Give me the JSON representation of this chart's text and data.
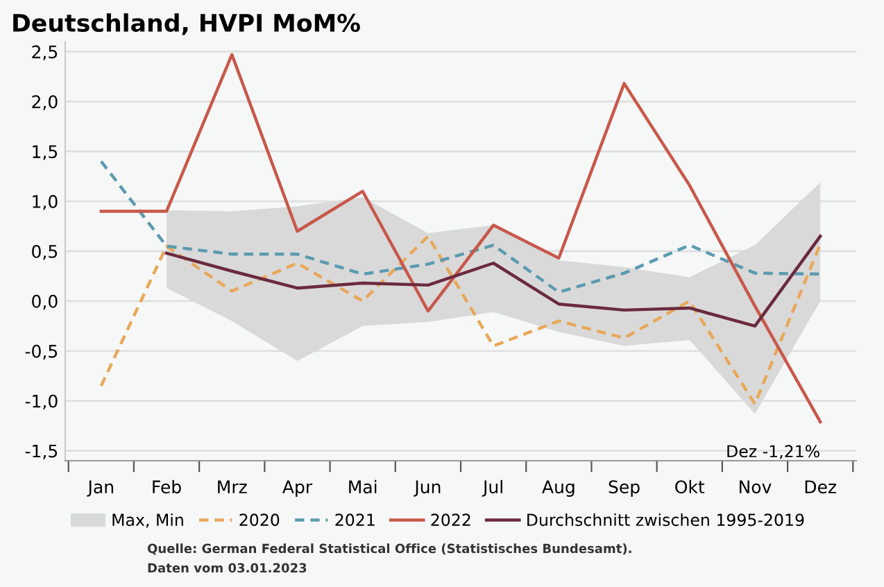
{
  "chart_data": {
    "type": "line",
    "title": "Deutschland, HVPI MoM%",
    "categories": [
      "Jan",
      "Feb",
      "Mrz",
      "Apr",
      "Mai",
      "Jun",
      "Jul",
      "Aug",
      "Sep",
      "Okt",
      "Nov",
      "Dez"
    ],
    "series": [
      {
        "name": "2020",
        "color": "#e8a85a",
        "line_style": "dashed",
        "values": [
          -0.85,
          0.55,
          0.1,
          0.38,
          0.0,
          0.65,
          -0.45,
          -0.2,
          -0.37,
          0.0,
          -1.03,
          0.57
        ]
      },
      {
        "name": "2021",
        "color": "#5b9bb0",
        "line_style": "dashed",
        "values": [
          1.4,
          0.55,
          0.47,
          0.47,
          0.27,
          0.37,
          0.56,
          0.09,
          0.28,
          0.56,
          0.28,
          0.27
        ]
      },
      {
        "name": "2022",
        "color": "#c8584a",
        "line_style": "solid",
        "values": [
          0.9,
          0.9,
          2.47,
          0.7,
          1.1,
          -0.1,
          0.76,
          0.43,
          2.18,
          1.16,
          -0.05,
          -1.21
        ]
      },
      {
        "name": "Durchschnitt zwischen 1995-2019",
        "color": "#6b2a3e",
        "line_style": "solid",
        "values": [
          null,
          0.48,
          0.3,
          0.13,
          0.18,
          0.16,
          0.38,
          -0.03,
          -0.09,
          -0.07,
          -0.25,
          0.65
        ],
        "lower": [
          null,
          0.13,
          -0.2,
          -0.6,
          -0.25,
          -0.21,
          -0.11,
          -0.31,
          -0.45,
          -0.39,
          -1.13,
          0.0
        ],
        "upper": [
          null,
          0.91,
          0.9,
          0.95,
          1.04,
          0.68,
          0.76,
          0.41,
          0.34,
          0.24,
          0.56,
          1.19
        ]
      }
    ],
    "ylim": [
      -1.6,
      2.6
    ],
    "yticks": [
      {
        "value": -1.5,
        "label": "-1,5"
      },
      {
        "value": -1.0,
        "label": "-1,0"
      },
      {
        "value": -0.5,
        "label": "-0,5"
      },
      {
        "value": 0.0,
        "label": "0,0"
      },
      {
        "value": 0.5,
        "label": "0,5"
      },
      {
        "value": 1.0,
        "label": "1,0"
      },
      {
        "value": 1.5,
        "label": "1,5"
      },
      {
        "value": 2.0,
        "label": "2,0"
      },
      {
        "value": 2.5,
        "label": "2,5"
      }
    ],
    "grid": "y",
    "legend": "bottom",
    "marker": "none",
    "annotations": [
      "Max, Min",
      {
        "text": "Dez -1,21%",
        "x": "Dez",
        "y": -1.21
      },
      "Quelle: German Federal Statistical Office (Statistisches Bundesamt).",
      "Daten vom 03.01.2023"
    ]
  }
}
